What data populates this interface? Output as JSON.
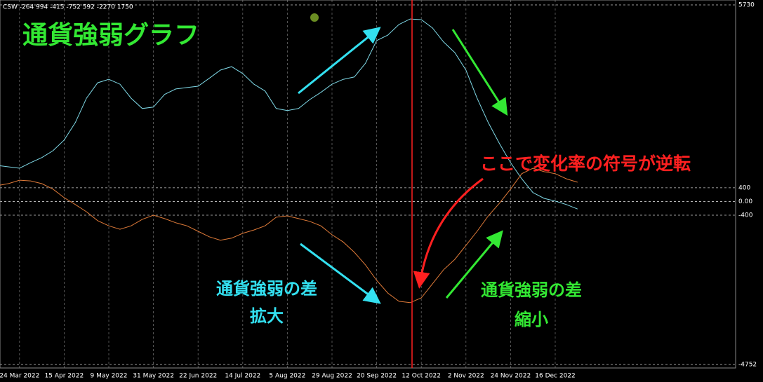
{
  "chart_data": {
    "type": "line",
    "title": "通貨強弱グラフ",
    "indicator_label": "CSW -264 994 -415 -752 592 -2270 1750",
    "annotations": [
      "ここで変化率の符号が逆転",
      "通貨強弱の差",
      "拡大",
      "通貨強弱の差",
      "縮小"
    ],
    "categories": [
      null,
      null,
      "24 Mar 2022",
      null,
      null,
      null,
      "15 Apr 2022",
      null,
      null,
      null,
      "9 May 2022",
      null,
      null,
      null,
      "31 May 2022",
      null,
      null,
      null,
      "22 Jun 2022",
      null,
      null,
      null,
      "14 Jul 2022",
      null,
      null,
      null,
      "5 Aug 2022",
      null,
      null,
      null,
      "29 Aug 2022",
      null,
      null,
      null,
      "20 Sep 2022",
      null,
      null,
      null,
      "12 Oct 2022",
      null,
      null,
      null,
      "2 Nov 2022",
      null,
      null,
      null,
      "24 Nov 2022",
      null,
      null,
      null,
      "16 Dec 2022",
      null,
      null
    ],
    "series": [
      {
        "color": "#7fd8e6",
        "values": [
          1050,
          1010,
          970,
          1130,
          1280,
          1480,
          1790,
          2300,
          3010,
          3460,
          3560,
          3420,
          3010,
          2710,
          2750,
          3120,
          3280,
          3320,
          3360,
          3590,
          3830,
          3930,
          3730,
          3420,
          3220,
          2710,
          2650,
          2710,
          2970,
          3180,
          3420,
          3560,
          3630,
          4030,
          4690,
          4850,
          5160,
          5320,
          5300,
          5060,
          4650,
          4340,
          3830,
          3010,
          2300,
          1690,
          1130,
          660,
          260,
          90,
          10,
          -90,
          -220
        ]
      },
      {
        "color": "#e07b39",
        "values": [
          460,
          520,
          620,
          600,
          520,
          360,
          110,
          -90,
          -300,
          -560,
          -710,
          -810,
          -710,
          -520,
          -400,
          -500,
          -620,
          -710,
          -870,
          -1030,
          -1130,
          -1070,
          -930,
          -830,
          -710,
          -460,
          -420,
          -500,
          -580,
          -710,
          -970,
          -1180,
          -1480,
          -1850,
          -2300,
          -2670,
          -2910,
          -2950,
          -2810,
          -2400,
          -1990,
          -1690,
          -1280,
          -870,
          -420,
          -50,
          360,
          810,
          970,
          870,
          810,
          660,
          560
        ]
      }
    ],
    "ylim": [
      -4752,
      5730
    ],
    "yticks": [
      5730,
      400,
      {
        "value": 0,
        "label": "0.00"
      },
      -400,
      -4752
    ],
    "grid": true
  }
}
